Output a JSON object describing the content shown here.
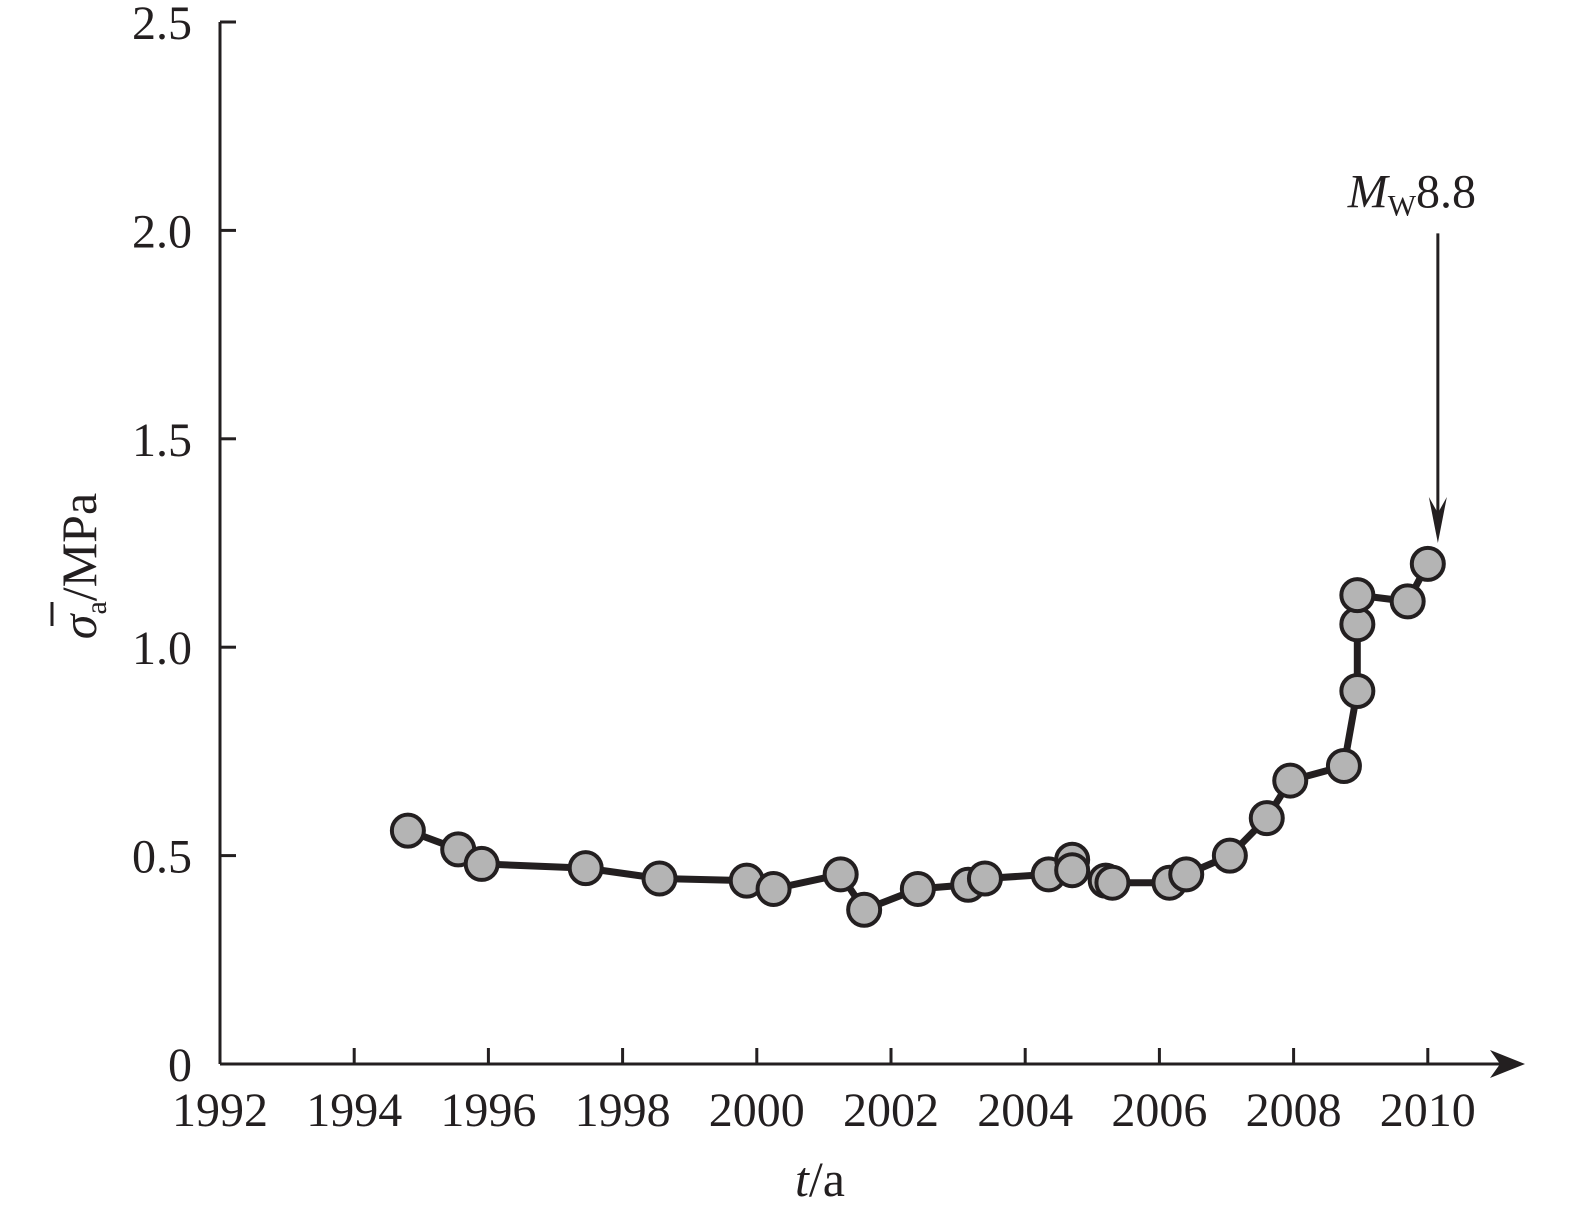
{
  "chart_data": {
    "type": "line",
    "title": "",
    "xlabel": {
      "var": "t",
      "unit": "a"
    },
    "ylabel": {
      "var": "σ",
      "sub": "a",
      "unit": "MPa",
      "overline": true
    },
    "xlim": [
      1992,
      2011.5
    ],
    "ylim": [
      0,
      2.5
    ],
    "xticks": [
      "1992",
      "1994",
      "1996",
      "1998",
      "2000",
      "2002",
      "2004",
      "2006",
      "2008",
      "2010"
    ],
    "yticks": [
      "0",
      "0.5",
      "1.0",
      "1.5",
      "2.0",
      "2.5"
    ],
    "grid": false,
    "series": [
      {
        "x": [
          1994.8,
          1995.55,
          1995.9,
          1997.45,
          1998.55,
          1999.85,
          2000.25,
          2001.25,
          2001.6,
          2002.4,
          2003.15,
          2003.4,
          2004.35,
          2004.7,
          2004.7,
          2005.2,
          2005.3,
          2006.15,
          2006.4,
          2007.05,
          2007.6,
          2007.95,
          2008.75,
          2008.95,
          2008.95,
          2008.95,
          2009.7,
          2010.0
        ],
        "y": [
          0.56,
          0.515,
          0.48,
          0.47,
          0.445,
          0.44,
          0.42,
          0.455,
          0.37,
          0.42,
          0.43,
          0.445,
          0.455,
          0.49,
          0.465,
          0.44,
          0.435,
          0.435,
          0.455,
          0.5,
          0.59,
          0.68,
          0.715,
          0.895,
          1.055,
          1.125,
          1.11,
          1.2
        ]
      }
    ],
    "annotation": {
      "m": "M",
      "sub": "W",
      "value": "8.8",
      "x": 2010.15,
      "y_from": 2.0,
      "y_to": 1.25
    },
    "colors": {
      "marker_fill": "#b4b4b4",
      "line": "#231f20",
      "axis": "#231f20"
    }
  }
}
